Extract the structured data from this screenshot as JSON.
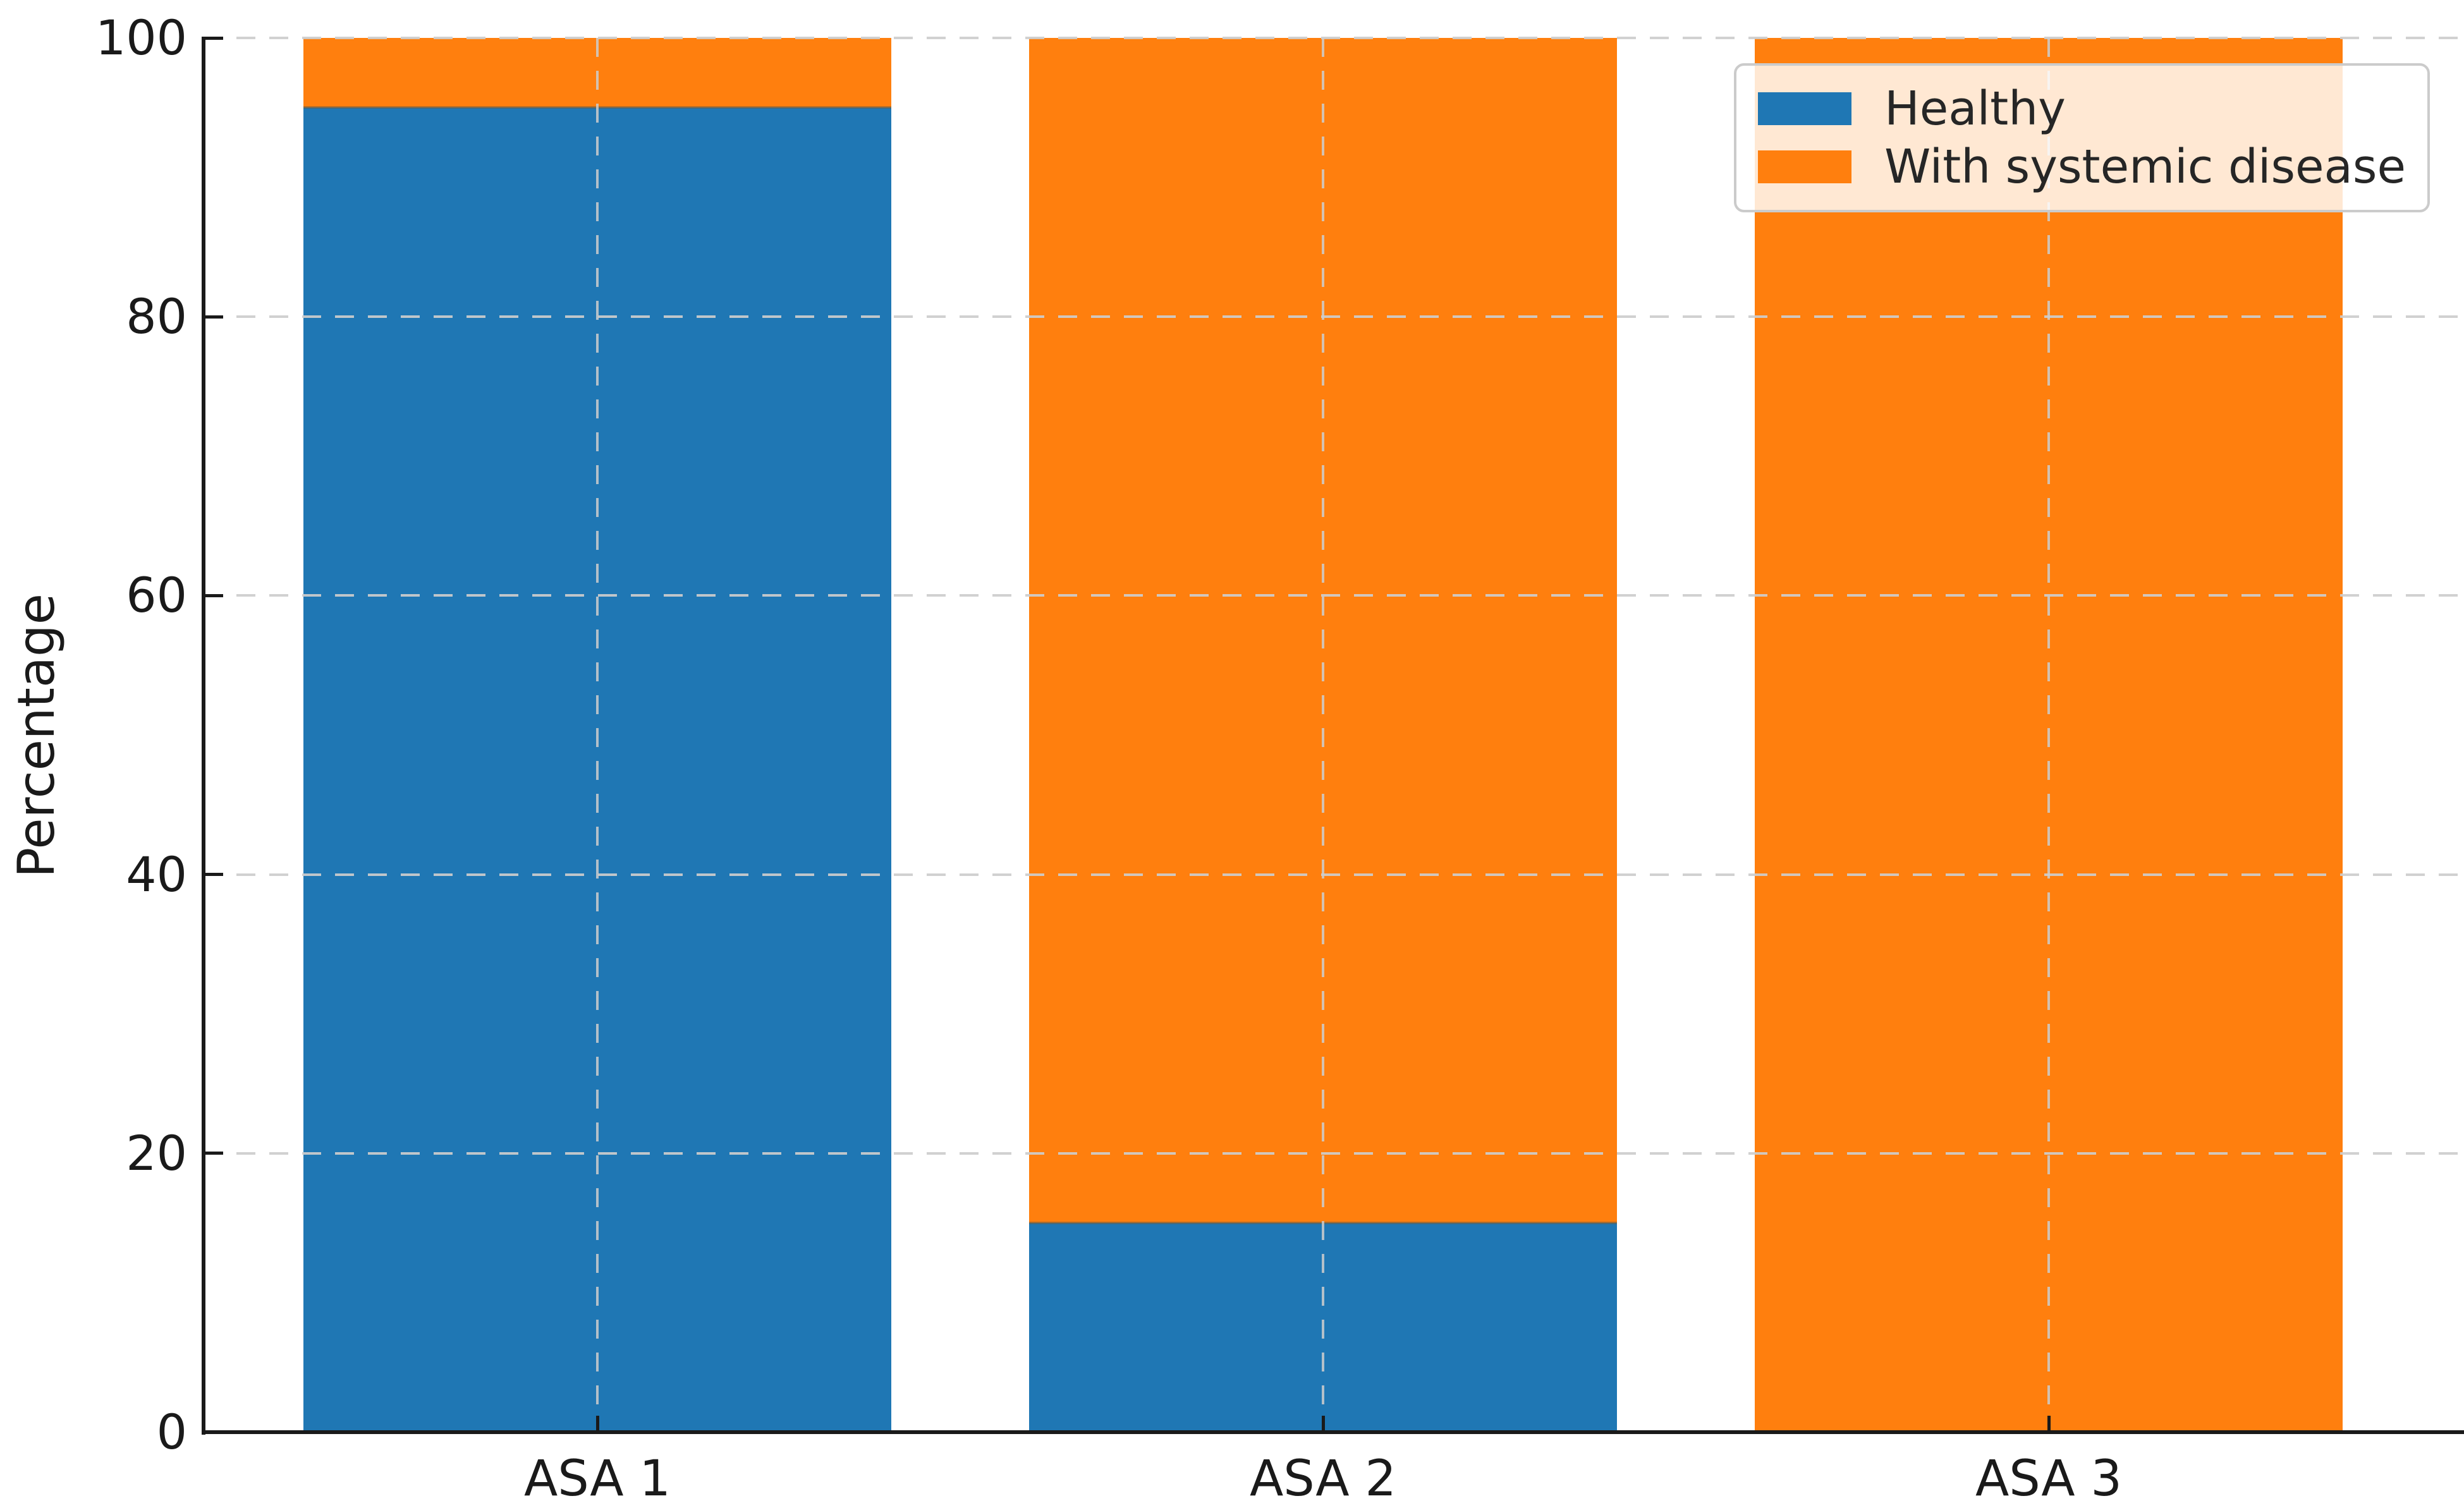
{
  "figure": {
    "background": "#ffffff"
  },
  "chart_data": {
    "type": "bar",
    "stacked": true,
    "orientation": "vertical",
    "title": "",
    "xlabel": "",
    "ylabel": "Percentage",
    "categories": [
      "ASA 1",
      "ASA 2",
      "ASA 3"
    ],
    "series": [
      {
        "name": "Healthy",
        "color": "#1f77b4",
        "values": [
          95,
          15,
          0
        ]
      },
      {
        "name": "With systemic disease",
        "color": "#ff7f0e",
        "values": [
          5,
          85,
          100
        ]
      }
    ],
    "ylim": [
      0,
      100
    ],
    "yticks": [
      0,
      20,
      40,
      60,
      80,
      100
    ],
    "ytick_labels": [
      "0",
      "20",
      "40",
      "60",
      "80",
      "100"
    ],
    "grid": {
      "visible": true,
      "style": "dashed",
      "color": "#cdcdcd",
      "axes": "both"
    },
    "legend": {
      "position": "upper right",
      "entries": [
        "Healthy",
        "With systemic disease"
      ]
    }
  },
  "legend": {
    "items": [
      {
        "label": "Healthy",
        "color": "#1f77b4"
      },
      {
        "label": "With systemic disease",
        "color": "#ff7f0e"
      }
    ],
    "background": "rgba(255,255,255,0.82)",
    "border_color": "#cbcbcb"
  },
  "colors": {
    "healthy_blue": "#1f77b4",
    "disease_orange": "#ff7f0e",
    "axis": "#1a1a1a",
    "grid": "#cdcdcd",
    "text": "#262626"
  }
}
